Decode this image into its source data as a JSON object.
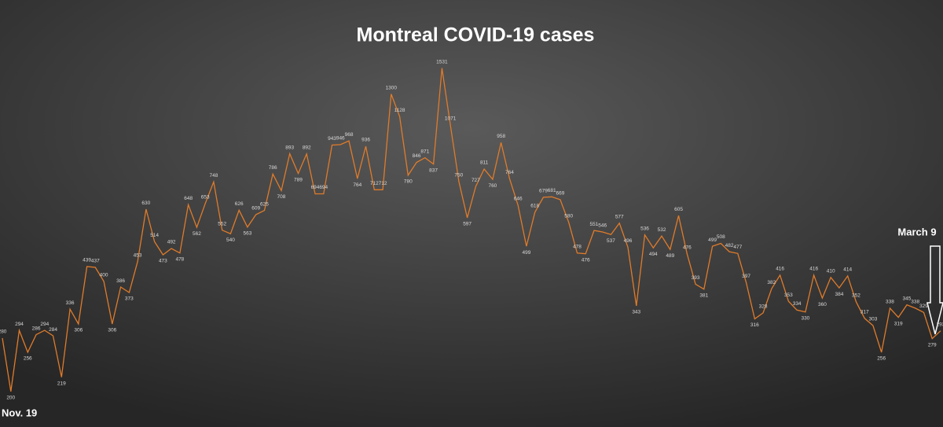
{
  "chart_data": {
    "type": "line",
    "title": "Montreal COVID-19 cases",
    "series": [
      {
        "color": "#e07b2a",
        "values": [
          280,
          200,
          294,
          256,
          286,
          294,
          284,
          219,
          336,
          306,
          439,
          437,
          400,
          306,
          386,
          373,
          453,
          630,
          514,
          473,
          492,
          478,
          648,
          562,
          653,
          748,
          552,
          540,
          626,
          563,
          609,
          625,
          786,
          708,
          893,
          789,
          892,
          694,
          694,
          943,
          946,
          968,
          764,
          936,
          712,
          712,
          1300,
          1128,
          780,
          846,
          871,
          837,
          1531,
          1071,
          750,
          597,
          727,
          811,
          760,
          958,
          764,
          646,
          499,
          618,
          679,
          681,
          669,
          580,
          478,
          476,
          551,
          546,
          537,
          577,
          496,
          343,
          536,
          494,
          532,
          489,
          605,
          476,
          393,
          381,
          499,
          508,
          482,
          477,
          397,
          316,
          328,
          382,
          416,
          353,
          334,
          330,
          416,
          360,
          410,
          384,
          414,
          352,
          317,
          303,
          256,
          338,
          319,
          345,
          338,
          329,
          279,
          293
        ]
      }
    ],
    "log_scale": true,
    "ylim": [
      160,
      2350
    ],
    "annotations": [
      "Nov. 19",
      "March 9"
    ]
  }
}
